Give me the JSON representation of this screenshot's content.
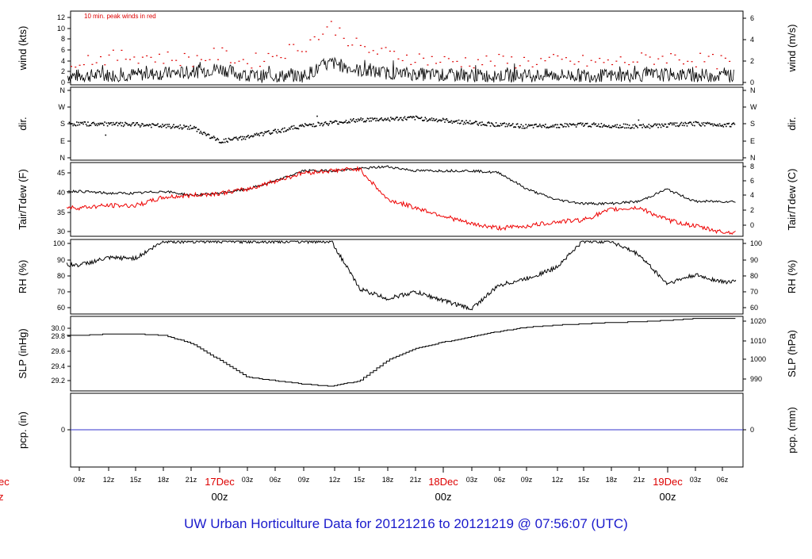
{
  "title": "UW Urban Horticulture Data for 20121216  to  20121219 @ 07:56:07  (UTC)",
  "annotation": "10 min. peak winds in red",
  "colors": {
    "line": "#000000",
    "peak": "#dd0000",
    "temp": "#ee0000",
    "precip": "#3333cc",
    "title": "#1a1acc",
    "date": "#dd0000"
  },
  "x_axis": {
    "hour_labels": [
      "09z",
      "12z",
      "15z",
      "18z",
      "21z",
      "03z",
      "06z",
      "09z",
      "12z",
      "15z",
      "18z",
      "21z",
      "03z",
      "06z",
      "09z",
      "12z",
      "15z",
      "18z",
      "21z",
      "03z",
      "06z"
    ],
    "day_labels": [
      {
        "date": "17Dec",
        "hour": "00z"
      },
      {
        "date": "18Dec",
        "hour": "00z"
      },
      {
        "date": "19Dec",
        "hour": "00z"
      }
    ],
    "cut_off_left": {
      "date": "ec",
      "hour": "z"
    }
  },
  "chart_data": [
    {
      "id": "wind",
      "type": "line",
      "ylabel": "wind (kts)",
      "ylabel_right": "wind (m/s)",
      "ylim": [
        0,
        13
      ],
      "ticks_left": [
        "0",
        "2",
        "4",
        "6",
        "8",
        "10",
        "12"
      ],
      "ticks_right": [
        "0",
        "2",
        "4",
        "6"
      ],
      "series": [
        {
          "name": "wind",
          "x": [
            9,
            15,
            21,
            24,
            27,
            33,
            36,
            39,
            42,
            48,
            54,
            60,
            66,
            72,
            78
          ],
          "y": [
            1.6,
            1.8,
            2.2,
            2.9,
            1.5,
            1.6,
            3.9,
            2.5,
            2.1,
            1.7,
            1.6,
            1.7,
            1.6,
            1.8,
            1.6
          ]
        },
        {
          "name": "10 min. peak winds",
          "x": [
            9,
            15,
            21,
            24,
            27,
            33,
            36,
            39,
            42,
            48,
            54,
            60,
            66,
            72,
            78
          ],
          "y": [
            4.5,
            5.2,
            4.5,
            5.5,
            4,
            7,
            10.5,
            6.5,
            5.5,
            4.2,
            4.2,
            4.2,
            4,
            5,
            4
          ]
        }
      ]
    },
    {
      "id": "dir",
      "type": "scatter",
      "ylabel": "dir.",
      "ylabel_right": "dir.",
      "ticks_left": [
        "N",
        "W",
        "S",
        "E",
        "N"
      ],
      "ticks_right": [
        "N",
        "W",
        "S",
        "E",
        "N"
      ],
      "series": [
        {
          "name": "direction",
          "x": [
            9,
            15,
            21,
            24,
            27,
            33,
            39,
            45,
            51,
            57,
            63,
            69,
            75,
            78
          ],
          "y": [
            185,
            180,
            165,
            90,
            115,
            175,
            205,
            215,
            190,
            170,
            180,
            170,
            185,
            180
          ]
        }
      ]
    },
    {
      "id": "temp",
      "type": "line",
      "ylabel": "Tair/Tdew (F)",
      "ylabel_right": "Tair/Tdew (C)",
      "ylim": [
        29,
        47
      ],
      "ticks_left": [
        "30",
        "35",
        "40",
        "45"
      ],
      "ticks_right": [
        "0",
        "2",
        "4",
        "6",
        "8"
      ],
      "series": [
        {
          "name": "Tair",
          "x": [
            9,
            12,
            15,
            18,
            21,
            24,
            27,
            30,
            33,
            36,
            39,
            42,
            45,
            48,
            51,
            54,
            57,
            60,
            63,
            66,
            69,
            72,
            75,
            78
          ],
          "y": [
            40,
            39.5,
            39.5,
            40,
            39,
            39.5,
            40.5,
            42.5,
            45,
            45,
            45.5,
            46,
            45,
            45,
            45,
            44.5,
            40.5,
            38,
            37,
            37,
            37.5,
            40.5,
            37.5,
            37.5
          ]
        },
        {
          "name": "Tdew",
          "x": [
            9,
            12,
            15,
            18,
            21,
            24,
            27,
            30,
            33,
            36,
            39,
            42,
            45,
            48,
            51,
            54,
            57,
            60,
            63,
            66,
            69,
            72,
            75,
            78
          ],
          "y": [
            36,
            36.5,
            36.5,
            38.5,
            39,
            39.5,
            40.5,
            42.5,
            44.5,
            45,
            45.5,
            38,
            36,
            34,
            32,
            31,
            31.5,
            32.5,
            33,
            35.5,
            36,
            33,
            31.5,
            30
          ]
        }
      ]
    },
    {
      "id": "rh",
      "type": "line",
      "ylabel": "RH (%)",
      "ylabel_right": "RH (%)",
      "ylim": [
        57,
        101
      ],
      "ticks_left": [
        "60",
        "70",
        "80",
        "90",
        "100"
      ],
      "ticks_right": [
        "60",
        "70",
        "80",
        "90",
        "100"
      ],
      "series": [
        {
          "name": "RH",
          "x": [
            9,
            12,
            15,
            18,
            21,
            24,
            27,
            30,
            33,
            36,
            39,
            42,
            45,
            48,
            51,
            54,
            57,
            60,
            63,
            66,
            69,
            72,
            75,
            78
          ],
          "y": [
            86,
            90,
            90,
            100,
            100,
            100,
            100,
            100,
            100,
            100,
            72,
            66,
            70,
            65,
            60,
            74,
            78,
            84,
            100,
            100,
            92,
            75,
            80,
            76
          ]
        }
      ]
    },
    {
      "id": "slp",
      "type": "line",
      "ylabel": "SLP (inHg)",
      "ylabel_right": "SLP (hPa)",
      "ylim": [
        29.05,
        30.15
      ],
      "ticks_left": [
        "29.2",
        "29.4",
        "29.6",
        "29.8",
        "30.0"
      ],
      "ticks_right": [
        "990",
        "1000",
        "1010",
        "1020"
      ],
      "series": [
        {
          "name": "SLP",
          "x": [
            9,
            12,
            15,
            18,
            21,
            24,
            27,
            30,
            33,
            36,
            39,
            42,
            45,
            48,
            51,
            54,
            57,
            60,
            63,
            66,
            69,
            72,
            75,
            78
          ],
          "y": [
            29.87,
            29.89,
            29.89,
            29.87,
            29.75,
            29.5,
            29.25,
            29.2,
            29.15,
            29.12,
            29.2,
            29.5,
            29.68,
            29.77,
            29.85,
            29.93,
            29.99,
            30.02,
            30.04,
            30.06,
            30.07,
            30.09,
            30.12,
            30.12
          ]
        }
      ]
    },
    {
      "id": "pcp",
      "type": "line",
      "ylabel": "pcp. (in)",
      "ylabel_right": "pcp. (mm)",
      "ticks_left": [
        "0"
      ],
      "ticks_right": [
        "0"
      ],
      "series": [
        {
          "name": "precip",
          "x": [
            7.6,
            79.4
          ],
          "y": [
            0,
            0
          ]
        }
      ]
    }
  ]
}
